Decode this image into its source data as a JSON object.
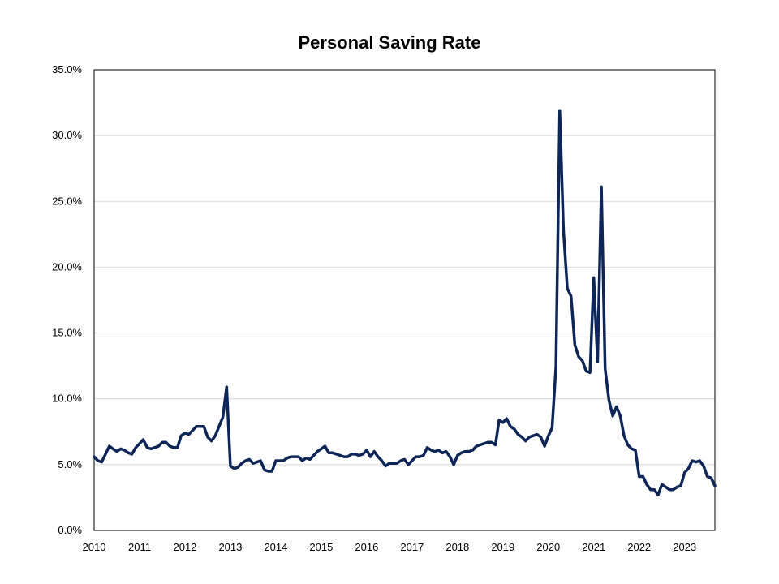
{
  "chart_data": {
    "type": "line",
    "title": "Personal Saving Rate",
    "xlabel": "",
    "ylabel": "",
    "ylim": [
      0,
      35
    ],
    "xlim": [
      "2010-01",
      "2023-09"
    ],
    "grid": "horizontal",
    "x_tick_labels": [
      "2010",
      "2011",
      "2012",
      "2013",
      "2014",
      "2015",
      "2016",
      "2017",
      "2018",
      "2019",
      "2020",
      "2021",
      "2022",
      "2023"
    ],
    "y_tick_labels": [
      "0.0%",
      "5.0%",
      "10.0%",
      "15.0%",
      "20.0%",
      "25.0%",
      "30.0%",
      "35.0%"
    ],
    "y_tick_values": [
      0,
      5,
      10,
      15,
      20,
      25,
      30,
      35
    ],
    "series": [
      {
        "color": "#0d2557",
        "points": [
          [
            "2010-01",
            5.6
          ],
          [
            "2010-02",
            5.3
          ],
          [
            "2010-03",
            5.2
          ],
          [
            "2010-04",
            5.8
          ],
          [
            "2010-05",
            6.4
          ],
          [
            "2010-06",
            6.2
          ],
          [
            "2010-07",
            6.0
          ],
          [
            "2010-08",
            6.2
          ],
          [
            "2010-09",
            6.1
          ],
          [
            "2010-10",
            5.9
          ],
          [
            "2010-11",
            5.8
          ],
          [
            "2010-12",
            6.3
          ],
          [
            "2011-01",
            6.6
          ],
          [
            "2011-02",
            6.9
          ],
          [
            "2011-03",
            6.3
          ],
          [
            "2011-04",
            6.2
          ],
          [
            "2011-05",
            6.3
          ],
          [
            "2011-06",
            6.4
          ],
          [
            "2011-07",
            6.7
          ],
          [
            "2011-08",
            6.7
          ],
          [
            "2011-09",
            6.4
          ],
          [
            "2011-10",
            6.3
          ],
          [
            "2011-11",
            6.3
          ],
          [
            "2011-12",
            7.2
          ],
          [
            "2012-01",
            7.4
          ],
          [
            "2012-02",
            7.3
          ],
          [
            "2012-03",
            7.6
          ],
          [
            "2012-04",
            7.9
          ],
          [
            "2012-05",
            7.9
          ],
          [
            "2012-06",
            7.9
          ],
          [
            "2012-07",
            7.1
          ],
          [
            "2012-08",
            6.8
          ],
          [
            "2012-09",
            7.2
          ],
          [
            "2012-10",
            7.9
          ],
          [
            "2012-11",
            8.6
          ],
          [
            "2012-12",
            10.9
          ],
          [
            "2013-01",
            4.9
          ],
          [
            "2013-02",
            4.7
          ],
          [
            "2013-03",
            4.8
          ],
          [
            "2013-04",
            5.1
          ],
          [
            "2013-05",
            5.3
          ],
          [
            "2013-06",
            5.4
          ],
          [
            "2013-07",
            5.1
          ],
          [
            "2013-08",
            5.2
          ],
          [
            "2013-09",
            5.3
          ],
          [
            "2013-10",
            4.6
          ],
          [
            "2013-11",
            4.5
          ],
          [
            "2013-12",
            4.5
          ],
          [
            "2014-01",
            5.3
          ],
          [
            "2014-02",
            5.3
          ],
          [
            "2014-03",
            5.3
          ],
          [
            "2014-04",
            5.5
          ],
          [
            "2014-05",
            5.6
          ],
          [
            "2014-06",
            5.6
          ],
          [
            "2014-07",
            5.6
          ],
          [
            "2014-08",
            5.3
          ],
          [
            "2014-09",
            5.5
          ],
          [
            "2014-10",
            5.4
          ],
          [
            "2014-11",
            5.7
          ],
          [
            "2014-12",
            6.0
          ],
          [
            "2015-01",
            6.2
          ],
          [
            "2015-02",
            6.4
          ],
          [
            "2015-03",
            5.9
          ],
          [
            "2015-04",
            5.9
          ],
          [
            "2015-05",
            5.8
          ],
          [
            "2015-06",
            5.7
          ],
          [
            "2015-07",
            5.6
          ],
          [
            "2015-08",
            5.6
          ],
          [
            "2015-09",
            5.8
          ],
          [
            "2015-10",
            5.8
          ],
          [
            "2015-11",
            5.7
          ],
          [
            "2015-12",
            5.8
          ],
          [
            "2016-01",
            6.1
          ],
          [
            "2016-02",
            5.6
          ],
          [
            "2016-03",
            6.0
          ],
          [
            "2016-04",
            5.6
          ],
          [
            "2016-05",
            5.3
          ],
          [
            "2016-06",
            4.9
          ],
          [
            "2016-07",
            5.1
          ],
          [
            "2016-08",
            5.1
          ],
          [
            "2016-09",
            5.1
          ],
          [
            "2016-10",
            5.3
          ],
          [
            "2016-11",
            5.4
          ],
          [
            "2016-12",
            5.0
          ],
          [
            "2017-01",
            5.3
          ],
          [
            "2017-02",
            5.6
          ],
          [
            "2017-03",
            5.6
          ],
          [
            "2017-04",
            5.7
          ],
          [
            "2017-05",
            6.3
          ],
          [
            "2017-06",
            6.1
          ],
          [
            "2017-07",
            6.0
          ],
          [
            "2017-08",
            6.1
          ],
          [
            "2017-09",
            5.9
          ],
          [
            "2017-10",
            6.0
          ],
          [
            "2017-11",
            5.6
          ],
          [
            "2017-12",
            5.0
          ],
          [
            "2018-01",
            5.7
          ],
          [
            "2018-02",
            5.9
          ],
          [
            "2018-03",
            6.0
          ],
          [
            "2018-04",
            6.0
          ],
          [
            "2018-05",
            6.1
          ],
          [
            "2018-06",
            6.4
          ],
          [
            "2018-07",
            6.5
          ],
          [
            "2018-08",
            6.6
          ],
          [
            "2018-09",
            6.7
          ],
          [
            "2018-10",
            6.7
          ],
          [
            "2018-11",
            6.5
          ],
          [
            "2018-12",
            8.4
          ],
          [
            "2019-01",
            8.2
          ],
          [
            "2019-02",
            8.5
          ],
          [
            "2019-03",
            7.9
          ],
          [
            "2019-04",
            7.7
          ],
          [
            "2019-05",
            7.3
          ],
          [
            "2019-06",
            7.1
          ],
          [
            "2019-07",
            6.8
          ],
          [
            "2019-08",
            7.1
          ],
          [
            "2019-09",
            7.2
          ],
          [
            "2019-10",
            7.3
          ],
          [
            "2019-11",
            7.1
          ],
          [
            "2019-12",
            6.4
          ],
          [
            "2020-01",
            7.2
          ],
          [
            "2020-02",
            7.8
          ],
          [
            "2020-03",
            12.4
          ],
          [
            "2020-04",
            31.9
          ],
          [
            "2020-05",
            22.8
          ],
          [
            "2020-06",
            18.4
          ],
          [
            "2020-07",
            17.8
          ],
          [
            "2020-08",
            14.1
          ],
          [
            "2020-09",
            13.2
          ],
          [
            "2020-10",
            12.9
          ],
          [
            "2020-11",
            12.1
          ],
          [
            "2020-12",
            12.0
          ],
          [
            "2021-01",
            19.2
          ],
          [
            "2021-02",
            12.8
          ],
          [
            "2021-03",
            26.1
          ],
          [
            "2021-04",
            12.3
          ],
          [
            "2021-05",
            9.9
          ],
          [
            "2021-06",
            8.7
          ],
          [
            "2021-07",
            9.4
          ],
          [
            "2021-08",
            8.7
          ],
          [
            "2021-09",
            7.2
          ],
          [
            "2021-10",
            6.5
          ],
          [
            "2021-11",
            6.2
          ],
          [
            "2021-12",
            6.1
          ],
          [
            "2022-01",
            4.1
          ],
          [
            "2022-02",
            4.1
          ],
          [
            "2022-03",
            3.5
          ],
          [
            "2022-04",
            3.1
          ],
          [
            "2022-05",
            3.1
          ],
          [
            "2022-06",
            2.7
          ],
          [
            "2022-07",
            3.5
          ],
          [
            "2022-08",
            3.3
          ],
          [
            "2022-09",
            3.1
          ],
          [
            "2022-10",
            3.1
          ],
          [
            "2022-11",
            3.3
          ],
          [
            "2022-12",
            3.4
          ],
          [
            "2023-01",
            4.4
          ],
          [
            "2023-02",
            4.7
          ],
          [
            "2023-03",
            5.3
          ],
          [
            "2023-04",
            5.2
          ],
          [
            "2023-05",
            5.3
          ],
          [
            "2023-06",
            4.9
          ],
          [
            "2023-07",
            4.1
          ],
          [
            "2023-08",
            4.0
          ],
          [
            "2023-09",
            3.4
          ]
        ]
      }
    ]
  }
}
